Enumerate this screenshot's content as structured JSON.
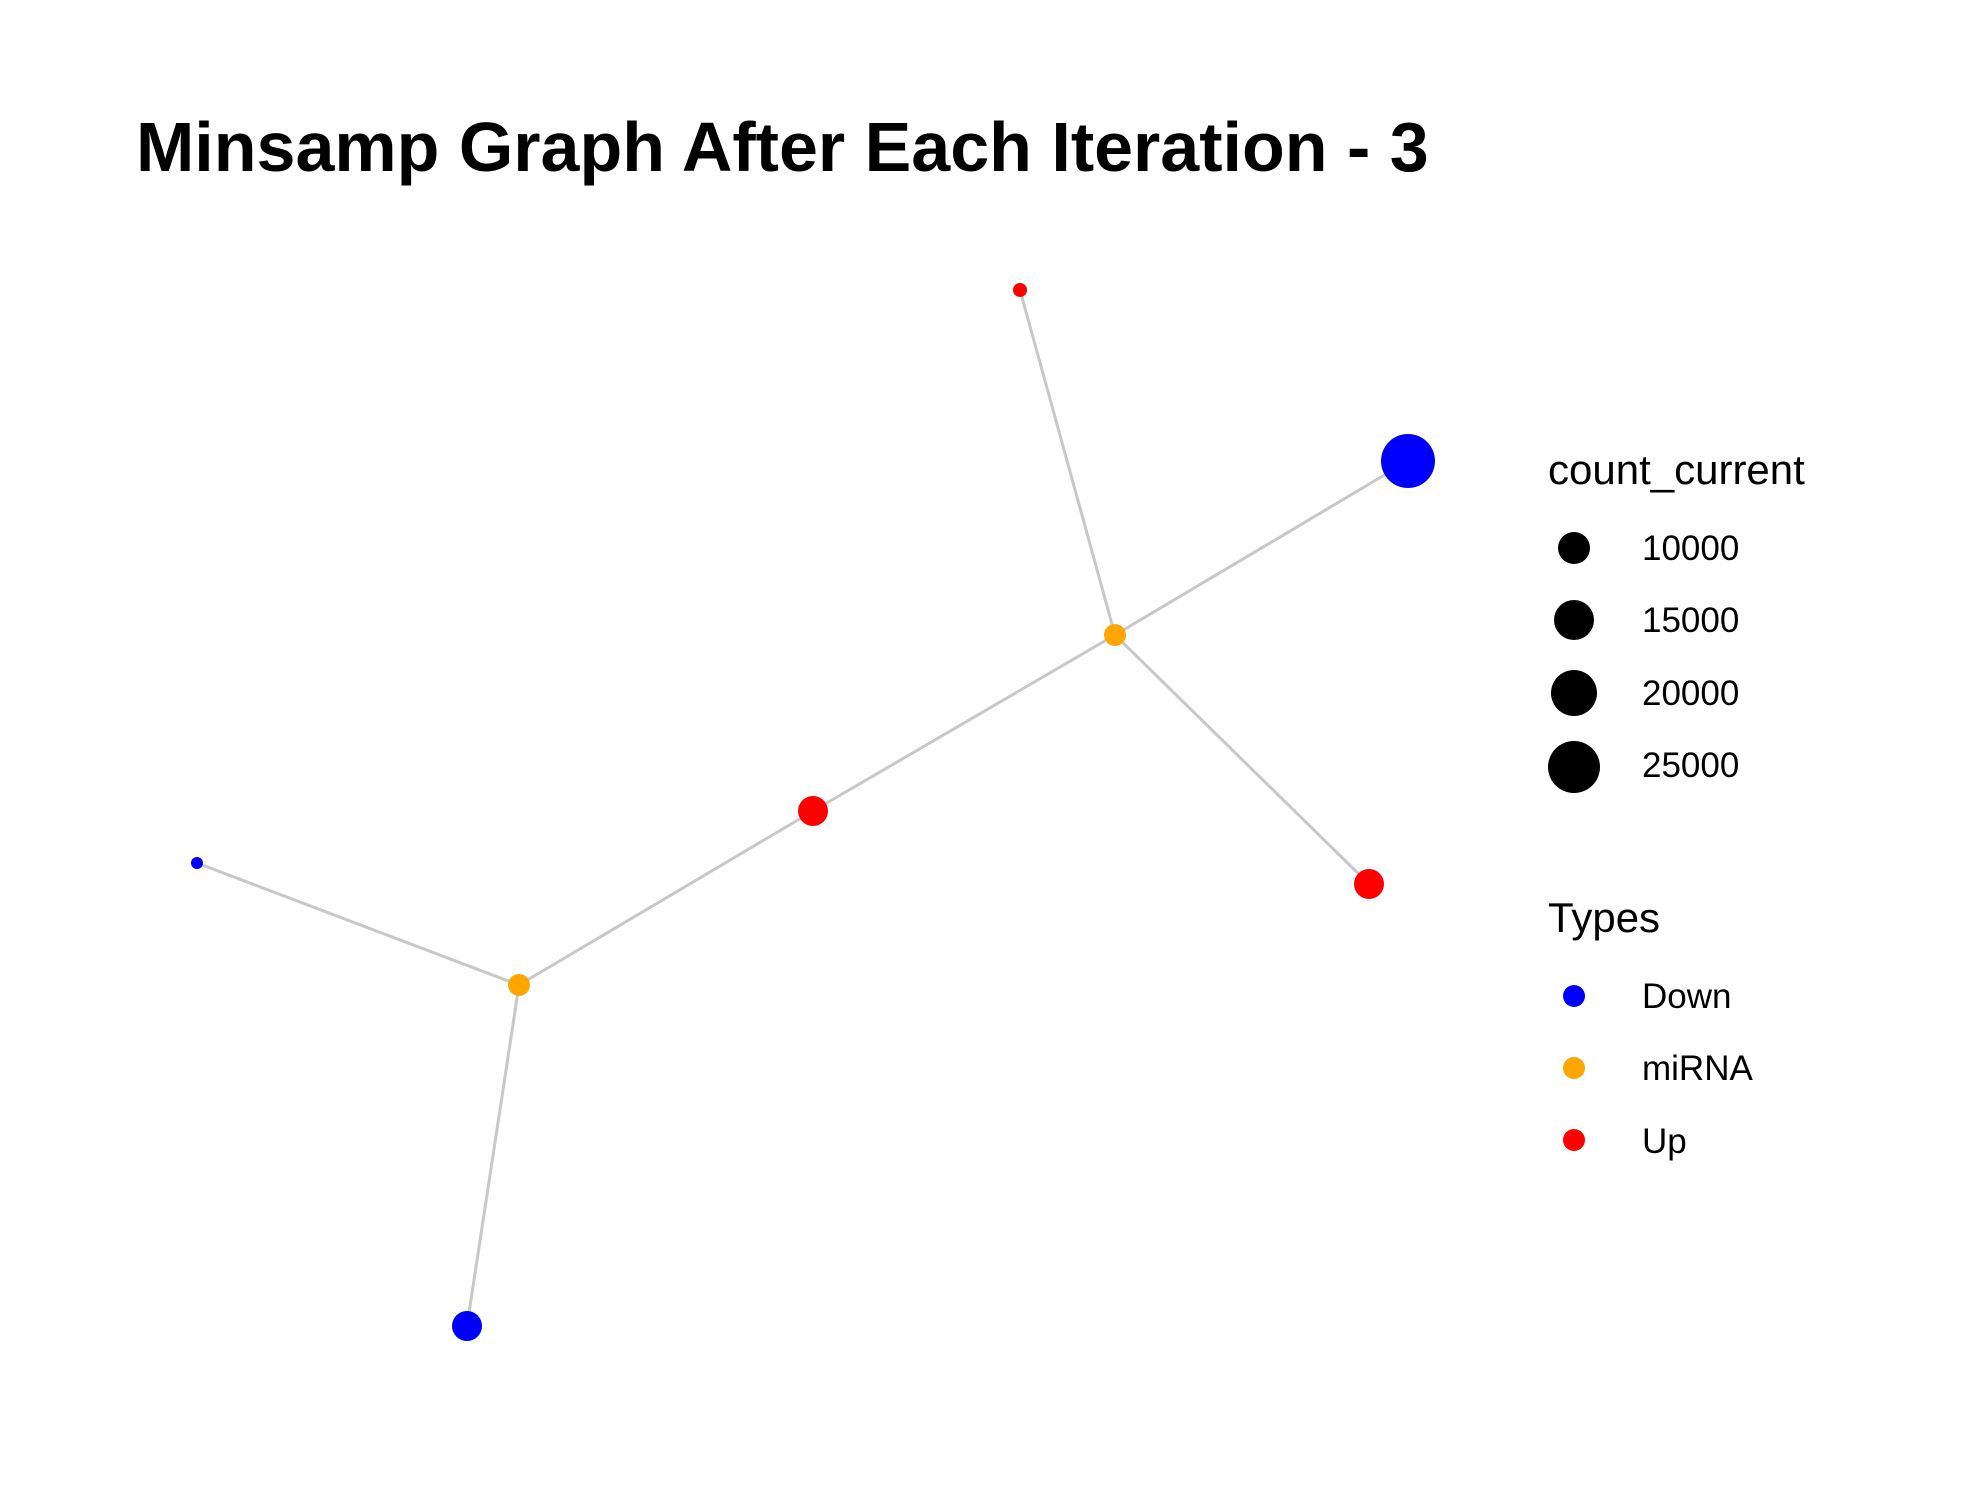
{
  "title": "Minsamp Graph After Each Iteration - 3",
  "legend": {
    "size_title": "count_current",
    "size_entries": [
      {
        "label": "10000",
        "value": 10000
      },
      {
        "label": "15000",
        "value": 15000
      },
      {
        "label": "20000",
        "value": 20000
      },
      {
        "label": "25000",
        "value": 25000
      }
    ],
    "type_title": "Types",
    "type_entries": [
      {
        "label": "Down",
        "color": "#0000FF"
      },
      {
        "label": "miRNA",
        "color": "#FFA500"
      },
      {
        "label": "Up",
        "color": "#FF0000"
      }
    ]
  },
  "graph": {
    "edge_color": "#C8C8C8",
    "nodes": [
      {
        "id": "m1",
        "type": "miRNA"
      },
      {
        "id": "m2",
        "type": "miRNA"
      },
      {
        "id": "up_top",
        "type": "Up"
      },
      {
        "id": "down_big",
        "type": "Down"
      },
      {
        "id": "up_right",
        "type": "Up"
      },
      {
        "id": "up_mid",
        "type": "Up"
      },
      {
        "id": "down_left_small",
        "type": "Down"
      },
      {
        "id": "down_bottom",
        "type": "Down"
      }
    ],
    "edges": [
      [
        "m1",
        "up_top"
      ],
      [
        "m1",
        "down_big"
      ],
      [
        "m1",
        "up_right"
      ],
      [
        "m1",
        "up_mid"
      ],
      [
        "up_mid",
        "m2"
      ],
      [
        "m2",
        "down_left_small"
      ],
      [
        "m2",
        "down_bottom"
      ]
    ]
  }
}
